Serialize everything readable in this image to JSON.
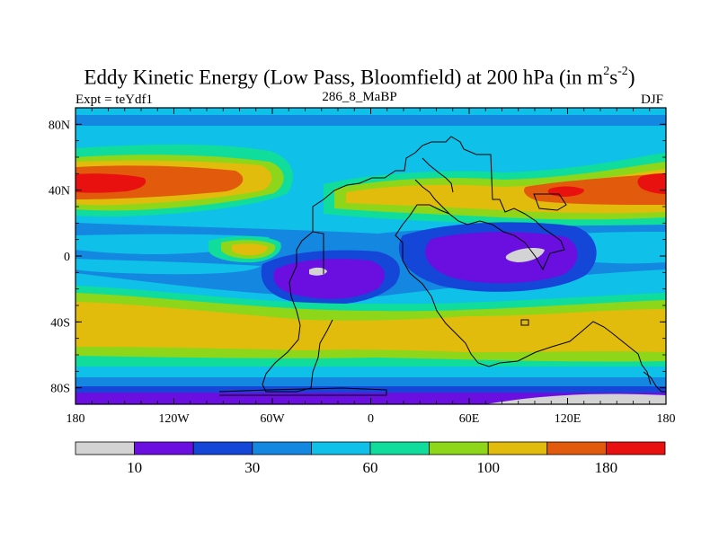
{
  "title": {
    "main": "Eddy Kinetic Energy (Low Pass, Bloomfield) at 200 hPa (in m",
    "sup1": "2",
    "mid": "s",
    "sup2": "-2",
    "end": ")"
  },
  "left_label": "Expt = teYdf1",
  "center_label": "286_8_MaBP",
  "right_label": "DJF",
  "chart_data": {
    "type": "heatmap",
    "title": "Eddy Kinetic Energy (Low Pass, Bloomfield) at 200 hPa (in m2s-2)",
    "field": "eddy kinetic energy",
    "units": "m2 s-2",
    "season": "DJF",
    "experiment": "teYdf1",
    "x_range": [
      -180,
      180
    ],
    "y_range": [
      -90,
      90
    ],
    "x_ticks": [
      {
        "value": -180,
        "label": "180"
      },
      {
        "value": -120,
        "label": "120W"
      },
      {
        "value": -60,
        "label": "60W"
      },
      {
        "value": 0,
        "label": "0"
      },
      {
        "value": 60,
        "label": "60E"
      },
      {
        "value": 120,
        "label": "120E"
      },
      {
        "value": 180,
        "label": "180"
      }
    ],
    "y_ticks": [
      {
        "value": 80,
        "label": "80N"
      },
      {
        "value": 40,
        "label": "40N"
      },
      {
        "value": 0,
        "label": "0"
      },
      {
        "value": -40,
        "label": "40S"
      },
      {
        "value": -80,
        "label": "80S"
      }
    ],
    "colorbar": {
      "colors": [
        "#d3d3d3",
        "#6a0fe0",
        "#1446d8",
        "#1487e0",
        "#0fc0e8",
        "#10dd9c",
        "#8ed61a",
        "#e2bc0c",
        "#e25a0c",
        "#e8110f"
      ],
      "labels": [
        {
          "index": 1,
          "text": "10"
        },
        {
          "index": 3,
          "text": "30"
        },
        {
          "index": 5,
          "text": "60"
        },
        {
          "index": 7,
          "text": "100"
        },
        {
          "index": 9,
          "text": "180"
        }
      ]
    }
  }
}
